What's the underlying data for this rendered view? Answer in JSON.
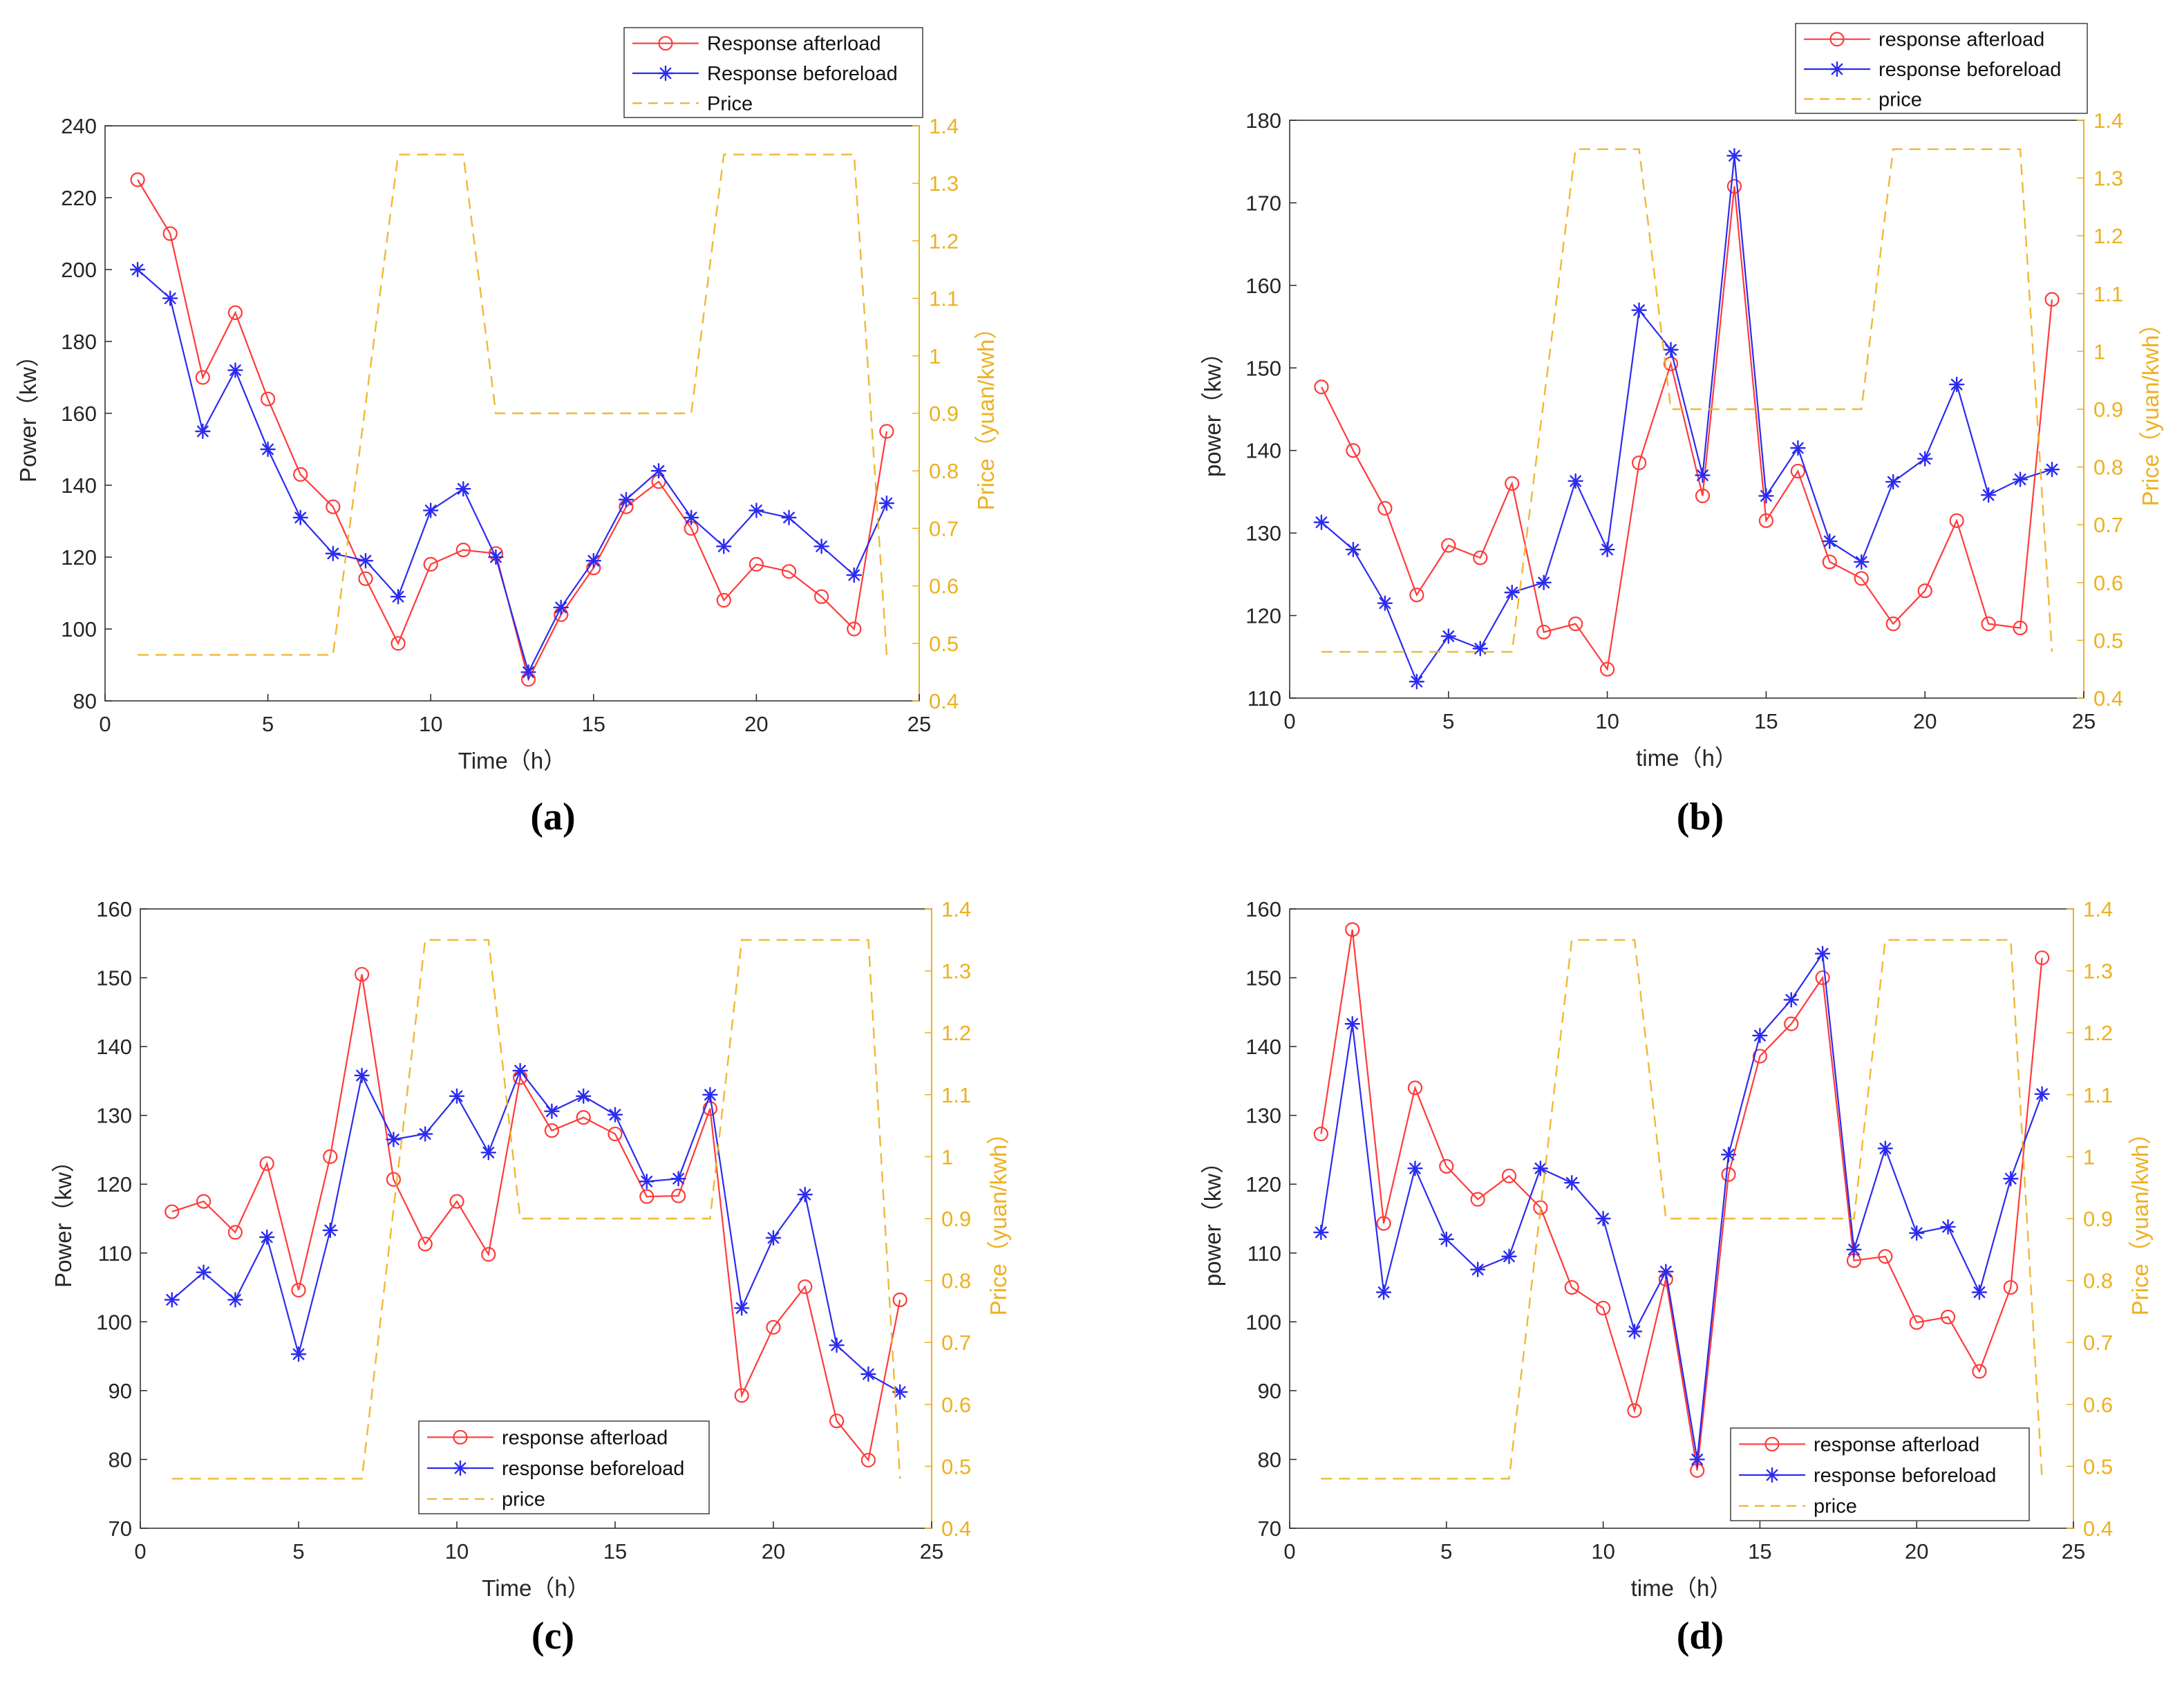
{
  "colors": {
    "after": "#ff3b3b",
    "before": "#2b2bf0",
    "price": "#EDB120",
    "axis": "#262626"
  },
  "chart_data": [
    {
      "type": "line",
      "panel": "(a)",
      "xlabel": "Time（h）",
      "ylabel": "Power（kw）",
      "y2label": "Price（yuan/kwh）",
      "xlim": [
        0,
        25
      ],
      "ylim": [
        80,
        240
      ],
      "y2lim": [
        0.4,
        1.4
      ],
      "xticks": [
        0,
        5,
        10,
        15,
        20,
        25
      ],
      "yticks": [
        80,
        100,
        120,
        140,
        160,
        180,
        200,
        220,
        240
      ],
      "y2ticks": [
        "0.4",
        "0.5",
        "0.6",
        "0.7",
        "0.8",
        "0.9",
        "1",
        "1.1",
        "1.2",
        "1.3",
        "1.4"
      ],
      "legend_position": "top-right-outside",
      "x": [
        1,
        2,
        3,
        4,
        5,
        6,
        7,
        8,
        9,
        10,
        11,
        12,
        13,
        14,
        15,
        16,
        17,
        18,
        19,
        20,
        21,
        22,
        23,
        24
      ],
      "series": [
        {
          "name": "Response afterload",
          "key": "after",
          "marker": "circle",
          "values": [
            225,
            210,
            170,
            188,
            164,
            143,
            134,
            114,
            96,
            118,
            122,
            121,
            86,
            104,
            117,
            134,
            141,
            128,
            108,
            118,
            116,
            109,
            100,
            155
          ]
        },
        {
          "name": "Response beforeload",
          "key": "before",
          "marker": "star",
          "values": [
            200,
            192,
            155,
            172,
            150,
            131,
            121,
            119,
            109,
            133,
            139,
            120,
            88,
            106,
            119,
            136,
            144,
            131,
            123,
            133,
            131,
            123,
            115,
            135
          ]
        },
        {
          "name": "Price",
          "key": "price",
          "marker": "none",
          "axis": "right",
          "points": [
            [
              1,
              0.48
            ],
            [
              7,
              0.48
            ],
            [
              9,
              1.35
            ],
            [
              11,
              1.35
            ],
            [
              12,
              0.9
            ],
            [
              18,
              0.9
            ],
            [
              19,
              1.35
            ],
            [
              23,
              1.35
            ],
            [
              24,
              0.48
            ]
          ]
        }
      ]
    },
    {
      "type": "line",
      "panel": "(b)",
      "xlabel": "time（h）",
      "ylabel": "power（kw）",
      "y2label": "Price（yuan/kwh）",
      "xlim": [
        0,
        25
      ],
      "ylim": [
        110,
        180
      ],
      "y2lim": [
        0.4,
        1.4
      ],
      "xticks": [
        0,
        5,
        10,
        15,
        20,
        25
      ],
      "yticks": [
        110,
        120,
        130,
        140,
        150,
        160,
        170,
        180
      ],
      "y2ticks": [
        "0.4",
        "0.5",
        "0.6",
        "0.7",
        "0.8",
        "0.9",
        "1",
        "1.1",
        "1.2",
        "1.3",
        "1.4"
      ],
      "legend_position": "top-right-outside",
      "x": [
        1,
        2,
        3,
        4,
        5,
        6,
        7,
        8,
        9,
        10,
        11,
        12,
        13,
        14,
        15,
        16,
        17,
        18,
        19,
        20,
        21,
        22,
        23,
        24
      ],
      "series": [
        {
          "name": "response afterload",
          "key": "after",
          "marker": "circle",
          "values": [
            147.7,
            140,
            133,
            122.5,
            128.5,
            127,
            136,
            118,
            119,
            113.5,
            138.5,
            150.5,
            134.5,
            172,
            131.5,
            137.5,
            126.5,
            124.5,
            119,
            123,
            131.5,
            119,
            118.5,
            158.3
          ]
        },
        {
          "name": "response beforeload",
          "key": "before",
          "marker": "star",
          "values": [
            131.3,
            128,
            121.5,
            112,
            117.5,
            116,
            122.8,
            124,
            136.3,
            128,
            157,
            152.2,
            137,
            175.7,
            134.5,
            140.3,
            129,
            126.5,
            136.2,
            139,
            148,
            134.6,
            136.5,
            137.7
          ]
        },
        {
          "name": "price",
          "key": "price",
          "marker": "none",
          "axis": "right",
          "points": [
            [
              1,
              0.48
            ],
            [
              7,
              0.48
            ],
            [
              9,
              1.35
            ],
            [
              11,
              1.35
            ],
            [
              12,
              0.9
            ],
            [
              18,
              0.9
            ],
            [
              19,
              1.35
            ],
            [
              23,
              1.35
            ],
            [
              24,
              0.48
            ]
          ]
        }
      ]
    },
    {
      "type": "line",
      "panel": "(c)",
      "xlabel": "Time（h）",
      "ylabel": "Power（kw）",
      "y2label": "Price（yuan/kwh）",
      "xlim": [
        0,
        25
      ],
      "ylim": [
        70,
        160
      ],
      "y2lim": [
        0.4,
        1.4
      ],
      "xticks": [
        0,
        5,
        10,
        15,
        20,
        25
      ],
      "yticks": [
        70,
        80,
        90,
        100,
        110,
        120,
        130,
        140,
        150,
        160
      ],
      "y2ticks": [
        "0.4",
        "0.5",
        "0.6",
        "0.7",
        "0.8",
        "0.9",
        "1",
        "1.1",
        "1.2",
        "1.3",
        "1.4"
      ],
      "legend_position": "bottom-center",
      "x": [
        1,
        2,
        3,
        4,
        5,
        6,
        7,
        8,
        9,
        10,
        11,
        12,
        13,
        14,
        15,
        16,
        17,
        18,
        19,
        20,
        21,
        22,
        23,
        24
      ],
      "series": [
        {
          "name": "response afterload",
          "key": "after",
          "marker": "circle",
          "values": [
            116,
            117.5,
            113,
            123,
            104.6,
            124,
            150.5,
            120.7,
            111.3,
            117.5,
            109.8,
            135.5,
            127.8,
            129.7,
            127.3,
            118.2,
            118.3,
            131,
            89.3,
            99.2,
            105.1,
            85.6,
            79.9,
            103.2
          ]
        },
        {
          "name": "response beforeload",
          "key": "before",
          "marker": "star",
          "values": [
            103.2,
            107.2,
            103.2,
            112.3,
            95.3,
            113.3,
            135.8,
            126.5,
            127.3,
            132.8,
            124.6,
            136.5,
            130.6,
            132.8,
            130.1,
            120.4,
            120.8,
            133,
            102,
            112.2,
            118.5,
            96.6,
            92.4,
            89.8
          ]
        },
        {
          "name": "price",
          "key": "price",
          "marker": "none",
          "axis": "right",
          "points": [
            [
              1,
              0.48
            ],
            [
              7,
              0.48
            ],
            [
              9,
              1.35
            ],
            [
              11,
              1.35
            ],
            [
              12,
              0.9
            ],
            [
              18,
              0.9
            ],
            [
              19,
              1.35
            ],
            [
              23,
              1.35
            ],
            [
              24,
              0.48
            ]
          ]
        }
      ]
    },
    {
      "type": "line",
      "panel": "(d)",
      "xlabel": "time（h）",
      "ylabel": "power（kw）",
      "y2label": "Price（yuan/kwh）",
      "xlim": [
        0,
        25
      ],
      "ylim": [
        70,
        160
      ],
      "y2lim": [
        0.4,
        1.4
      ],
      "xticks": [
        0,
        5,
        10,
        15,
        20,
        25
      ],
      "yticks": [
        70,
        80,
        90,
        100,
        110,
        120,
        130,
        140,
        150,
        160
      ],
      "y2ticks": [
        "0.4",
        "0.5",
        "0.6",
        "0.7",
        "0.8",
        "0.9",
        "1",
        "1.1",
        "1.2",
        "1.3",
        "1.4"
      ],
      "legend_position": "bottom-right",
      "x": [
        1,
        2,
        3,
        4,
        5,
        6,
        7,
        8,
        9,
        10,
        11,
        12,
        13,
        14,
        15,
        16,
        17,
        18,
        19,
        20,
        21,
        22,
        23,
        24
      ],
      "series": [
        {
          "name": "response afterload",
          "key": "after",
          "marker": "circle",
          "values": [
            127.3,
            157,
            114.3,
            134,
            122.6,
            117.8,
            121.2,
            116.6,
            105,
            102,
            87.1,
            106.2,
            78.4,
            121.4,
            138.6,
            143.3,
            150,
            108.9,
            109.5,
            99.9,
            100.7,
            92.8,
            105,
            152.9
          ]
        },
        {
          "name": "response beforeload",
          "key": "before",
          "marker": "star",
          "values": [
            113,
            143.3,
            104.3,
            122.3,
            112,
            107.6,
            109.5,
            122.3,
            120.2,
            115,
            98.6,
            107.3,
            80,
            124.3,
            141.6,
            146.8,
            153.5,
            110.5,
            125.2,
            112.9,
            113.8,
            104.3,
            120.8,
            133.1
          ]
        },
        {
          "name": "price",
          "key": "price",
          "marker": "none",
          "axis": "right",
          "points": [
            [
              1,
              0.48
            ],
            [
              7,
              0.48
            ],
            [
              9,
              1.35
            ],
            [
              11,
              1.35
            ],
            [
              12,
              0.9
            ],
            [
              18,
              0.9
            ],
            [
              19,
              1.35
            ],
            [
              23,
              1.35
            ],
            [
              24,
              0.48
            ]
          ]
        }
      ]
    }
  ]
}
